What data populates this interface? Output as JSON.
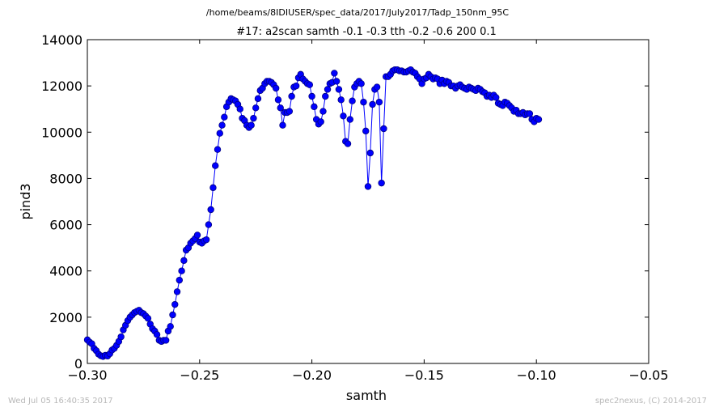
{
  "chart_data": {
    "type": "line",
    "file_path": "/home/beams/8IDIUSER/spec_data/2017/July2017/Tadp_150nm_95C",
    "title": "#17: a2scan  samth -0.1 -0.3  tth -0.2 -0.6  200 0.1",
    "xlabel": "samth",
    "ylabel": "pind3",
    "xlim": [
      -0.3,
      -0.05
    ],
    "ylim": [
      0,
      14000
    ],
    "x_ticks": [
      -0.3,
      -0.25,
      -0.2,
      -0.15,
      -0.1,
      -0.05
    ],
    "x_tick_labels": [
      "−0.30",
      "−0.25",
      "−0.20",
      "−0.15",
      "−0.10",
      "−0.05"
    ],
    "y_ticks": [
      0,
      2000,
      4000,
      6000,
      8000,
      10000,
      12000,
      14000
    ],
    "y_tick_labels": [
      "0",
      "2000",
      "4000",
      "6000",
      "8000",
      "10000",
      "12000",
      "14000"
    ],
    "grid": false,
    "legend": false,
    "colors": {
      "series": "#0000ff",
      "marker_edge": "#000080",
      "footer": "#b8b8b8"
    },
    "series": [
      {
        "x_start": -0.3,
        "x_step": 0.001,
        "values": [
          1020,
          920,
          850,
          650,
          550,
          400,
          330,
          300,
          350,
          320,
          420,
          580,
          650,
          780,
          950,
          1150,
          1450,
          1650,
          1850,
          2000,
          2100,
          2200,
          2250,
          2300,
          2200,
          2150,
          2050,
          1950,
          1700,
          1500,
          1400,
          1250,
          1000,
          950,
          1000,
          1000,
          1400,
          1600,
          2100,
          2550,
          3100,
          3600,
          4000,
          4450,
          4900,
          5000,
          5200,
          5300,
          5400,
          5550,
          5250,
          5200,
          5300,
          5350,
          6000,
          6650,
          7600,
          8550,
          9250,
          9950,
          10300,
          10650,
          11100,
          11300,
          11450,
          11400,
          11350,
          11200,
          11000,
          10600,
          10500,
          10300,
          10200,
          10300,
          10600,
          11050,
          11450,
          11800,
          11900,
          12100,
          12200,
          12200,
          12150,
          12050,
          11900,
          11400,
          11050,
          10300,
          10850,
          10850,
          10900,
          11550,
          11950,
          12000,
          12350,
          12500,
          12300,
          12200,
          12100,
          12050,
          11550,
          11100,
          10550,
          10350,
          10450,
          10900,
          11550,
          11850,
          12100,
          12150,
          12550,
          12200,
          11850,
          11400,
          10700,
          9600,
          9500,
          10550,
          11350,
          11950,
          12100,
          12200,
          12100,
          11300,
          10050,
          7650,
          9100,
          11200,
          11850,
          11950,
          11300,
          7800,
          10150,
          12400,
          12400,
          12500,
          12650,
          12700,
          12700,
          12650,
          12650,
          12600,
          12600,
          12650,
          12700,
          12600,
          12550,
          12400,
          12300,
          12100,
          12300,
          12350,
          12500,
          12400,
          12300,
          12350,
          12300,
          12100,
          12250,
          12100,
          12200,
          12150,
          12000,
          12000,
          11900,
          12000,
          12050,
          11950,
          11900,
          11850,
          11950,
          11900,
          11850,
          11800,
          11900,
          11850,
          11750,
          11700,
          11550,
          11600,
          11500,
          11600,
          11500,
          11250,
          11200,
          11150,
          11300,
          11250,
          11150,
          11050,
          10900,
          10950,
          10800,
          10800,
          10850,
          10750,
          10800,
          10800,
          10550,
          10450,
          10600,
          10550
        ]
      }
    ]
  },
  "footer": {
    "timestamp": "Wed Jul 05 16:40:35 2017",
    "credit": "spec2nexus, (C) 2014-2017"
  }
}
